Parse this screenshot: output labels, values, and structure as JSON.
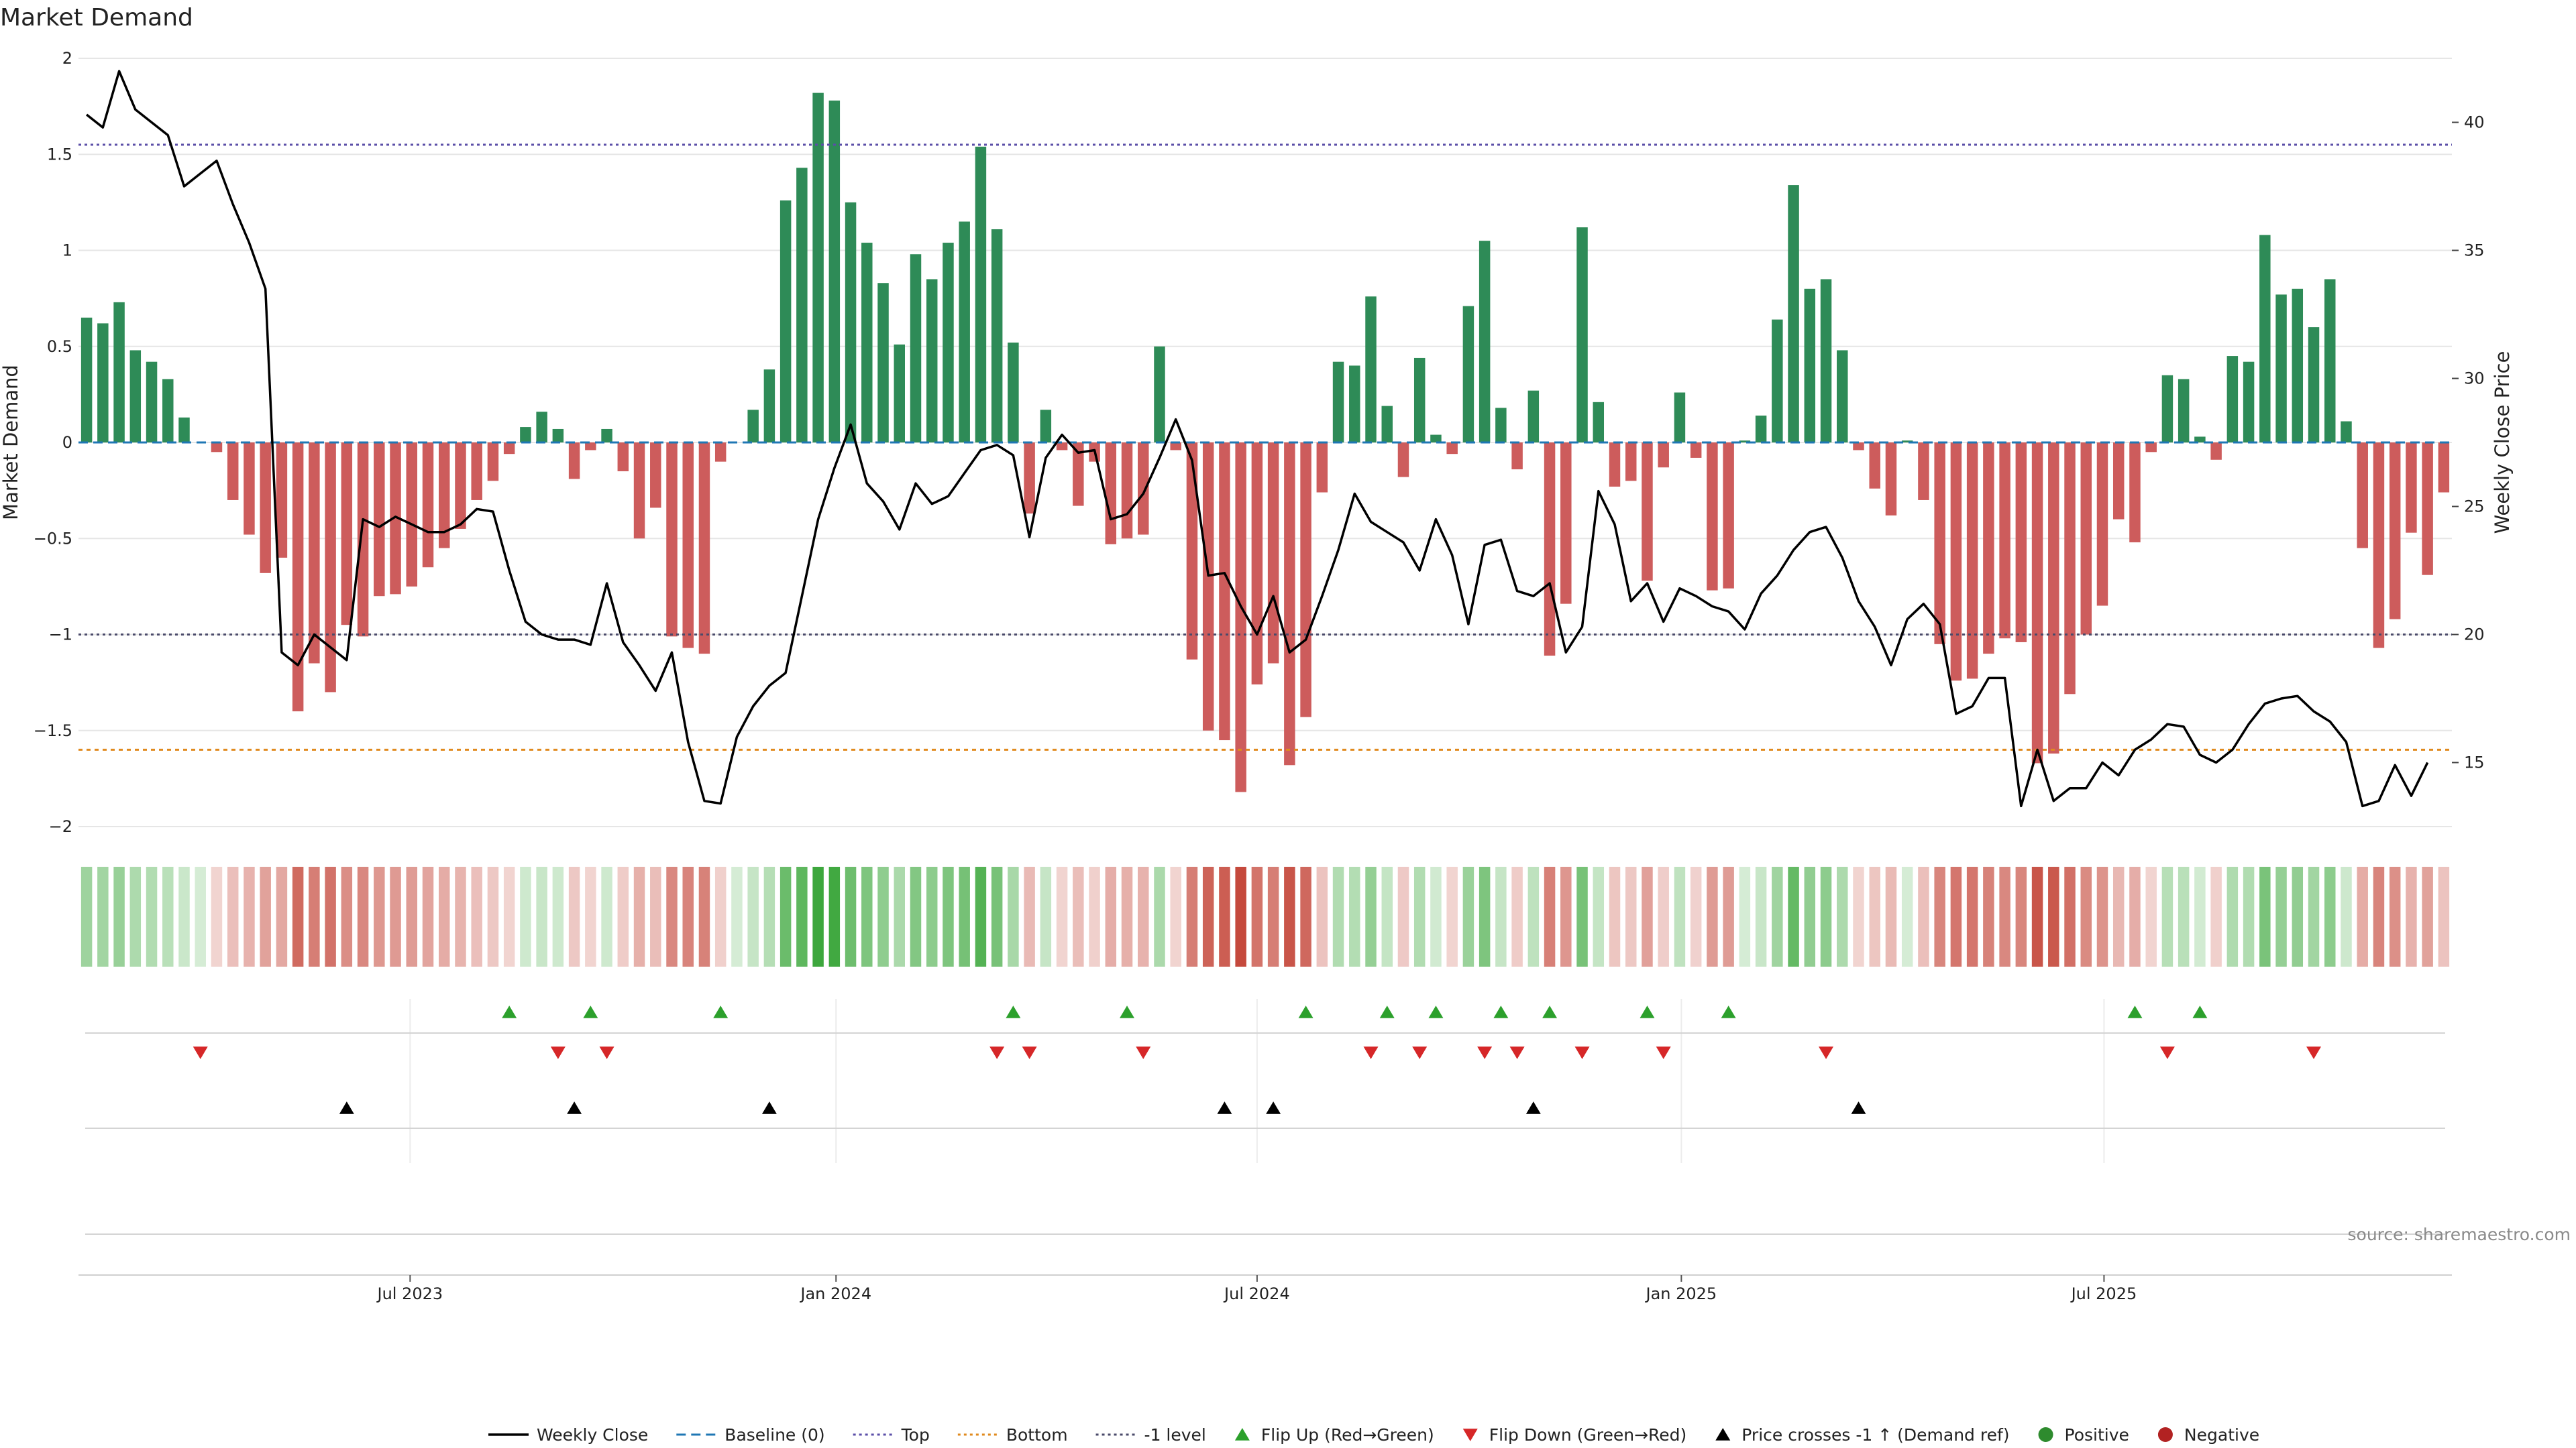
{
  "chart_data": {
    "type": "bar",
    "title": "Market Demand",
    "ylabel": "Market Demand",
    "y2label": "Weekly Close Price",
    "ylim": [
      -2,
      2
    ],
    "y2lim": [
      12.5,
      42.5
    ],
    "yticks": [
      "2",
      "1.5",
      "1",
      "0.5",
      "0",
      "−0.5",
      "−1",
      "−1.5",
      "−2"
    ],
    "ytick_values": [
      2,
      1.5,
      1,
      0.5,
      0,
      -0.5,
      -1,
      -1.5,
      -2
    ],
    "y2ticks": [
      "40",
      "35",
      "30",
      "25",
      "20",
      "15"
    ],
    "y2tick_values": [
      40,
      35,
      30,
      25,
      20,
      15
    ],
    "xticks": [
      "Jul 2023",
      "Jan 2024",
      "Jul 2024",
      "Jan 2025",
      "Jul 2025"
    ],
    "xtick_weeks": [
      20.4,
      46.6,
      72.5,
      98.6,
      124.6
    ],
    "reference_lines": {
      "top": 1.55,
      "bottom": -1.6,
      "minus_one": -1,
      "baseline": 0
    },
    "demand": [
      0.65,
      0.62,
      0.73,
      0.48,
      0.42,
      0.33,
      0.13,
      0,
      -0.05,
      -0.3,
      -0.48,
      -0.68,
      -0.6,
      -1.4,
      -1.15,
      -1.3,
      -0.95,
      -1.01,
      -0.8,
      -0.79,
      -0.75,
      -0.65,
      -0.55,
      -0.45,
      -0.3,
      -0.2,
      -0.06,
      0.08,
      0.16,
      0.07,
      -0.19,
      -0.04,
      0.07,
      -0.15,
      -0.5,
      -0.34,
      -1.01,
      -1.07,
      -1.1,
      -0.1,
      0,
      0.17,
      0.38,
      1.26,
      1.43,
      1.82,
      1.78,
      1.25,
      1.04,
      0.83,
      0.51,
      0.98,
      0.85,
      1.04,
      1.15,
      1.54,
      1.11,
      0.52,
      -0.37,
      0.17,
      -0.04,
      -0.33,
      -0.1,
      -0.53,
      -0.5,
      -0.48,
      0.5,
      -0.04,
      -1.13,
      -1.5,
      -1.55,
      -1.82,
      -1.26,
      -1.15,
      -1.68,
      -1.43,
      -0.26,
      0.42,
      0.4,
      0.76,
      0.19,
      -0.18,
      0.44,
      0.04,
      -0.06,
      0.71,
      1.05,
      0.18,
      -0.14,
      0.27,
      -1.11,
      -0.84,
      1.12,
      0.21,
      -0.23,
      -0.2,
      -0.72,
      -0.13,
      0.26,
      -0.08,
      -0.77,
      -0.76,
      0.01,
      0.14,
      0.64,
      1.34,
      0.8,
      0.85,
      0.48,
      -0.04,
      -0.24,
      -0.38,
      0.01,
      -0.3,
      -1.05,
      -1.24,
      -1.23,
      -1.1,
      -1.02,
      -1.04,
      -1.67,
      -1.62,
      -1.31,
      -1.0,
      -0.85,
      -0.4,
      -0.52,
      -0.05,
      0.35,
      0.33,
      0.03,
      -0.09,
      0.45,
      0.42,
      1.08,
      0.77,
      0.8,
      0.6,
      0.85,
      0.11,
      -0.55,
      -1.07,
      -0.92,
      -0.47,
      -0.69,
      -0.26
    ],
    "price_series": {
      "name": "Weekly Close",
      "values": [
        40.3,
        39.8,
        42.0,
        40.5,
        40.0,
        39.5,
        37.5,
        38.0,
        38.5,
        36.8,
        35.3,
        33.5,
        19.3,
        18.8,
        20.0,
        19.5,
        19.0,
        24.5,
        24.2,
        24.6,
        24.3,
        24.0,
        24.0,
        24.3,
        24.9,
        24.8,
        22.5,
        20.5,
        20.0,
        19.8,
        19.8,
        19.6,
        22.0,
        19.7,
        18.8,
        17.8,
        19.3,
        15.8,
        13.5,
        13.4,
        16.0,
        17.2,
        18.0,
        18.5,
        21.5,
        24.5,
        26.5,
        28.2,
        25.9,
        25.2,
        24.1,
        25.9,
        25.1,
        25.4,
        26.3,
        27.2,
        27.4,
        27.0,
        23.8,
        26.9,
        27.8,
        27.1,
        27.2,
        24.5,
        24.7,
        25.5,
        26.9,
        28.4,
        26.8,
        22.3,
        22.4,
        21.1,
        20.0,
        21.5,
        19.3,
        19.8,
        21.5,
        23.3,
        25.5,
        24.4,
        24.0,
        23.6,
        22.5,
        24.5,
        23.1,
        20.4,
        23.5,
        23.7,
        21.7,
        21.5,
        22.0,
        19.3,
        20.3,
        25.6,
        24.3,
        21.3,
        22.0,
        20.5,
        21.8,
        21.5,
        21.1,
        20.9,
        20.2,
        21.6,
        22.3,
        23.3,
        24.0,
        24.2,
        23.0,
        21.3,
        20.3,
        18.8,
        20.6,
        21.2,
        20.4,
        16.9,
        17.2,
        18.3,
        18.3,
        13.3,
        15.5,
        13.5,
        14.0,
        14.0,
        15.0,
        14.5,
        15.5,
        15.9,
        16.5,
        16.4,
        15.3,
        15.0,
        15.5,
        16.5,
        17.3,
        17.5,
        17.6,
        17.0,
        16.6,
        15.8,
        13.3,
        13.5,
        14.9,
        13.7,
        15.0
      ]
    },
    "flip_up_weeks": [
      26,
      31,
      39,
      57,
      64,
      75,
      80,
      83,
      87,
      90,
      96,
      101,
      126,
      130
    ],
    "flip_down_weeks": [
      7,
      29,
      32,
      56,
      58,
      65,
      79,
      82,
      86,
      88,
      92,
      97,
      107,
      128,
      137
    ],
    "price_cross_weeks": [
      16,
      30,
      42,
      70,
      73,
      89,
      109
    ],
    "legend": [
      {
        "label": "Weekly Close",
        "kind": "line",
        "color": "#000000"
      },
      {
        "label": "Baseline (0)",
        "kind": "dash",
        "color": "#1f77b4"
      },
      {
        "label": "Top",
        "kind": "dot",
        "color": "#5b4fa8"
      },
      {
        "label": "Bottom",
        "kind": "dot",
        "color": "#e08a1e"
      },
      {
        "label": "-1 level",
        "kind": "dot",
        "color": "#4a4a6a"
      },
      {
        "label": "Flip Up (Red→Green)",
        "kind": "tri-up",
        "color": "#2ca02c"
      },
      {
        "label": "Flip Down (Green→Red)",
        "kind": "tri-down",
        "color": "#d62728"
      },
      {
        "label": "Price crosses -1 ↑ (Demand ref)",
        "kind": "tri-up",
        "color": "#000000"
      },
      {
        "label": "Positive",
        "kind": "dot-marker",
        "color": "#2e8b2e"
      },
      {
        "label": "Negative",
        "kind": "dot-marker",
        "color": "#b22222"
      }
    ],
    "source": "source: sharemaestro.com",
    "colors": {
      "positive": "#2e8b57",
      "negative": "#cd5c5c",
      "heat_pos": "#2ca02c",
      "heat_neg": "#c0392b",
      "grid": "#e6e6e6"
    }
  }
}
